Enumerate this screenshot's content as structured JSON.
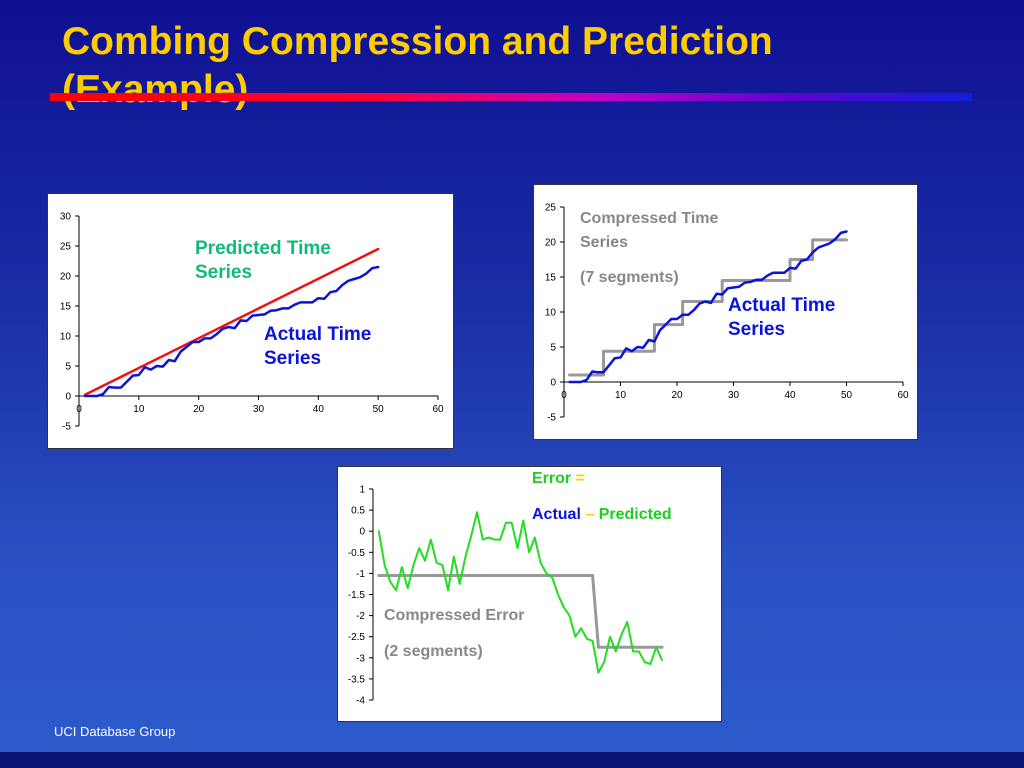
{
  "slide": {
    "title_line1": "Combing Compression and Prediction",
    "title_line2": "(Example)",
    "footer": "UCI Database Group"
  },
  "colors": {
    "title": "#ffcc00",
    "actual": "#0a14d8",
    "predicted": "#ee1111",
    "compressed": "#999999",
    "error": "#22dd22",
    "predicted_label": "#11bb77"
  },
  "labels": {
    "left_predicted_1": "Predicted Time",
    "left_predicted_2": "Series",
    "left_actual_1": "Actual Time",
    "left_actual_2": "Series",
    "right_compressed_1": "Compressed Time",
    "right_compressed_2": "Series",
    "right_compressed_3": "(7 segments)",
    "right_actual_1": "Actual Time",
    "right_actual_2": "Series",
    "bottom_error": "Error",
    "bottom_eq": "=",
    "bottom_actual": "Actual",
    "bottom_minus": "–",
    "bottom_predicted": "Predicted",
    "bottom_compressed_1": "Compressed Error",
    "bottom_compressed_2": "(2 segments)"
  },
  "chart_data": [
    {
      "type": "line",
      "xlim": [
        0,
        60
      ],
      "ylim": [
        -5,
        30
      ],
      "xticks": [
        "0",
        "10",
        "20",
        "30",
        "40",
        "50",
        "60"
      ],
      "yticks": [
        "30",
        "25",
        "20",
        "15",
        "10",
        "5",
        "0",
        "-5"
      ],
      "series": [
        {
          "name": "Predicted Time Series",
          "x": [
            1,
            50
          ],
          "y": [
            0.2,
            24.5
          ]
        },
        {
          "name": "Actual Time Series",
          "x": [
            1,
            2,
            3,
            4,
            5,
            6,
            7,
            8,
            9,
            10,
            11,
            12,
            13,
            14,
            15,
            16,
            17,
            18,
            19,
            20,
            21,
            22,
            23,
            24,
            25,
            26,
            27,
            28,
            29,
            30,
            31,
            32,
            33,
            34,
            35,
            36,
            37,
            38,
            39,
            40,
            41,
            42,
            43,
            44,
            45,
            46,
            47,
            48,
            49,
            50
          ],
          "y": [
            0,
            0,
            0,
            0.3,
            1.5,
            1.4,
            1.4,
            2.4,
            3.4,
            3.5,
            4.8,
            4.4,
            5.0,
            4.9,
            6.0,
            5.8,
            7.4,
            8.2,
            9.0,
            9.0,
            9.6,
            9.6,
            10.3,
            11.2,
            11.5,
            11.3,
            12.6,
            12.5,
            13.4,
            13.5,
            13.6,
            14.2,
            14.3,
            14.6,
            14.6,
            15.2,
            15.6,
            15.6,
            15.6,
            16.3,
            16.2,
            17.3,
            17.5,
            18.5,
            19.2,
            19.5,
            19.8,
            20.4,
            21.3,
            21.5
          ]
        }
      ]
    },
    {
      "type": "line",
      "xlim": [
        0,
        60
      ],
      "ylim": [
        -5,
        25
      ],
      "xticks": [
        "0",
        "10",
        "20",
        "30",
        "40",
        "50",
        "60"
      ],
      "yticks": [
        "25",
        "20",
        "15",
        "10",
        "5",
        "0",
        "-5"
      ],
      "series": [
        {
          "name": "Compressed Time Series",
          "x": [
            1,
            7,
            7,
            16,
            16,
            21,
            21,
            28,
            28,
            40,
            40,
            44,
            44,
            50
          ],
          "y": [
            1,
            1,
            4.4,
            4.4,
            8.2,
            8.2,
            11.5,
            11.5,
            14.5,
            14.5,
            17.5,
            17.5,
            20.3,
            20.3
          ]
        },
        {
          "name": "Actual Time Series",
          "x": [
            1,
            2,
            3,
            4,
            5,
            6,
            7,
            8,
            9,
            10,
            11,
            12,
            13,
            14,
            15,
            16,
            17,
            18,
            19,
            20,
            21,
            22,
            23,
            24,
            25,
            26,
            27,
            28,
            29,
            30,
            31,
            32,
            33,
            34,
            35,
            36,
            37,
            38,
            39,
            40,
            41,
            42,
            43,
            44,
            45,
            46,
            47,
            48,
            49,
            50
          ],
          "y": [
            0,
            0,
            0,
            0.3,
            1.5,
            1.4,
            1.4,
            2.4,
            3.4,
            3.5,
            4.8,
            4.4,
            5.0,
            4.9,
            6.0,
            5.8,
            7.4,
            8.2,
            9.0,
            9.0,
            9.6,
            9.6,
            10.3,
            11.2,
            11.5,
            11.3,
            12.6,
            12.5,
            13.4,
            13.5,
            13.6,
            14.2,
            14.3,
            14.6,
            14.6,
            15.2,
            15.6,
            15.6,
            15.6,
            16.3,
            16.2,
            17.3,
            17.5,
            18.5,
            19.2,
            19.5,
            19.8,
            20.4,
            21.3,
            21.5
          ]
        }
      ]
    },
    {
      "type": "line",
      "xlim": [
        0,
        50
      ],
      "ylim": [
        -4,
        1
      ],
      "yticks": [
        "1",
        "0.5",
        "0",
        "-0.5",
        "-1",
        "-1.5",
        "-2",
        "-2.5",
        "-3",
        "-3.5",
        "-4"
      ],
      "series": [
        {
          "name": "Compressed Error",
          "x": [
            1,
            38,
            39,
            50
          ],
          "y": [
            -1.05,
            -1.05,
            -2.75,
            -2.75
          ]
        },
        {
          "name": "Error",
          "x": [
            1,
            2,
            3,
            4,
            5,
            6,
            7,
            8,
            9,
            10,
            11,
            12,
            13,
            14,
            15,
            16,
            17,
            18,
            19,
            20,
            21,
            22,
            23,
            24,
            25,
            26,
            27,
            28,
            29,
            30,
            31,
            32,
            33,
            34,
            35,
            36,
            37,
            38,
            39,
            40,
            41,
            42,
            43,
            44,
            45,
            46,
            47,
            48,
            49,
            50
          ],
          "y": [
            0,
            -0.8,
            -1.2,
            -1.4,
            -0.85,
            -1.35,
            -0.8,
            -0.4,
            -0.7,
            -0.2,
            -0.75,
            -0.8,
            -1.4,
            -0.6,
            -1.25,
            -0.6,
            -0.1,
            0.45,
            -0.2,
            -0.15,
            -0.2,
            -0.2,
            0.2,
            0.2,
            -0.4,
            0.25,
            -0.5,
            -0.15,
            -0.75,
            -1.0,
            -1.1,
            -1.5,
            -1.8,
            -2.0,
            -2.5,
            -2.3,
            -2.55,
            -2.6,
            -3.35,
            -3.1,
            -2.5,
            -2.85,
            -2.45,
            -2.15,
            -2.85,
            -2.85,
            -3.1,
            -3.15,
            -2.75,
            -3.05
          ]
        }
      ]
    }
  ]
}
